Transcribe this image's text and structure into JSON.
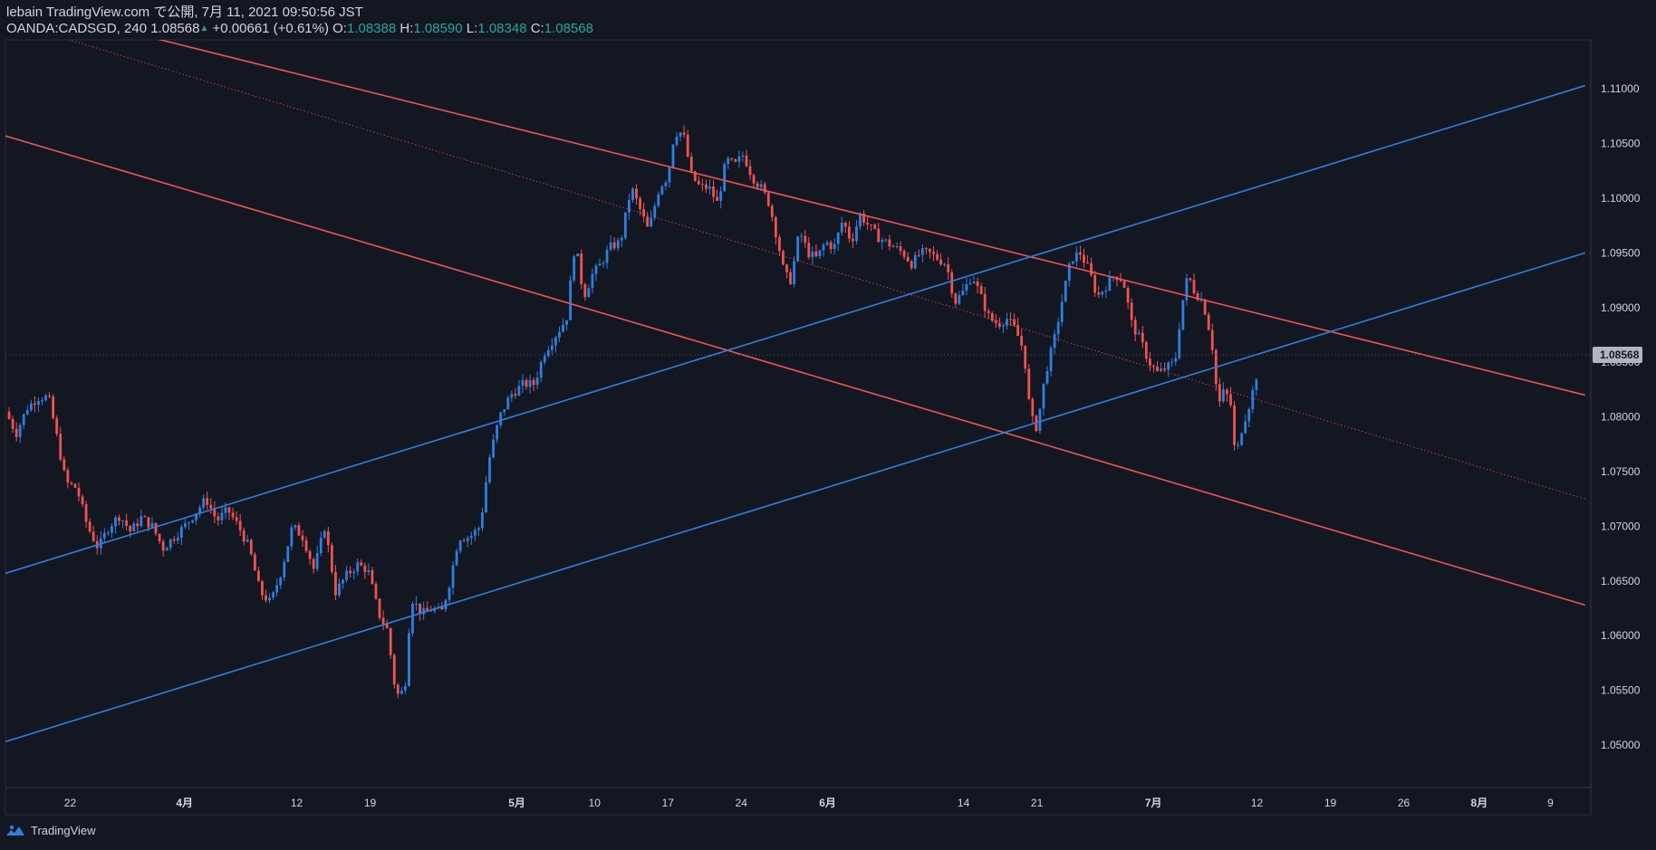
{
  "header": {
    "line1": "lebain TradingView.com で公開, 7月 11, 2021 09:50:56 JST",
    "symbol": "OANDA:CADSGD, 240",
    "last": "1.08568",
    "change": "+0.00661 (+0.61%)",
    "o_label": "O:",
    "o_value": "1.08388",
    "h_label": "H:",
    "h_value": "1.08590",
    "l_label": "L:",
    "l_value": "1.08348",
    "c_label": "C:",
    "c_value": "1.08568"
  },
  "footer": {
    "brand": "TradingView"
  },
  "colors": {
    "background": "#131722",
    "up": "#2e7fe0",
    "down": "#ef5350",
    "channel_red": "#ef5350",
    "channel_blue": "#2f7fe0",
    "text": "#d1d4dc",
    "price_badge": "#b2b5be"
  },
  "chart_data": {
    "type": "candlestick",
    "symbol": "OANDA:CADSGD",
    "interval": "240",
    "y_axis_ticks": [
      "1.11000",
      "1.10500",
      "1.10000",
      "1.09500",
      "1.09000",
      "1.08500",
      "1.08000",
      "1.07500",
      "1.07000",
      "1.06500",
      "1.06000",
      "1.05500",
      "1.05000"
    ],
    "ylim": [
      1.0455,
      1.1145
    ],
    "current_price": "1.08568",
    "x_axis_ticks": [
      {
        "label": "22",
        "idx": 3.0,
        "month": false
      },
      {
        "label": "4月",
        "idx": 8.3,
        "month": true
      },
      {
        "label": "12",
        "idx": 13.5,
        "month": false
      },
      {
        "label": "19",
        "idx": 16.9,
        "month": false
      },
      {
        "label": "5月",
        "idx": 23.7,
        "month": true
      },
      {
        "label": "10",
        "idx": 27.3,
        "month": false
      },
      {
        "label": "17",
        "idx": 30.7,
        "month": false
      },
      {
        "label": "24",
        "idx": 34.1,
        "month": false
      },
      {
        "label": "6月",
        "idx": 38.1,
        "month": true
      },
      {
        "label": "14",
        "idx": 44.4,
        "month": false
      },
      {
        "label": "21",
        "idx": 47.8,
        "month": false
      },
      {
        "label": "7月",
        "idx": 53.2,
        "month": true
      },
      {
        "label": "12",
        "idx": 58.0,
        "month": false
      },
      {
        "label": "19",
        "idx": 61.4,
        "month": false
      },
      {
        "label": "26",
        "idx": 64.8,
        "month": false
      },
      {
        "label": "8月",
        "idx": 68.3,
        "month": true
      },
      {
        "label": "9",
        "idx": 71.6,
        "month": false
      }
    ],
    "x_range": [
      0,
      73.2
    ],
    "price_path": [
      [
        0,
        1.0805
      ],
      [
        0.5,
        1.0785
      ],
      [
        1,
        1.0808
      ],
      [
        1.5,
        1.0818
      ],
      [
        2,
        1.0818
      ],
      [
        2.3,
        1.079
      ],
      [
        2.8,
        1.074
      ],
      [
        3.3,
        1.0735
      ],
      [
        3.8,
        1.07
      ],
      [
        4.3,
        1.068
      ],
      [
        4.8,
        1.07
      ],
      [
        5.3,
        1.071
      ],
      [
        5.8,
        1.0695
      ],
      [
        6.3,
        1.0708
      ],
      [
        6.8,
        1.07
      ],
      [
        7.3,
        1.068
      ],
      [
        7.8,
        1.069
      ],
      [
        8.3,
        1.07
      ],
      [
        9.3,
        1.0725
      ],
      [
        9.8,
        1.0705
      ],
      [
        10.3,
        1.0715
      ],
      [
        10.8,
        1.07
      ],
      [
        11.3,
        1.068
      ],
      [
        11.8,
        1.064
      ],
      [
        12.3,
        1.063
      ],
      [
        12.8,
        1.066
      ],
      [
        13.3,
        1.07
      ],
      [
        13.8,
        1.069
      ],
      [
        14.3,
        1.066
      ],
      [
        14.8,
        1.07
      ],
      [
        15.3,
        1.064
      ],
      [
        15.8,
        1.0655
      ],
      [
        16.3,
        1.0665
      ],
      [
        16.8,
        1.066
      ],
      [
        17.3,
        1.062
      ],
      [
        17.7,
        1.0605
      ],
      [
        18.1,
        1.0545
      ],
      [
        18.5,
        1.055
      ],
      [
        18.8,
        1.0635
      ],
      [
        19.3,
        1.062
      ],
      [
        19.8,
        1.0625
      ],
      [
        20.2,
        1.062
      ],
      [
        20.6,
        1.065
      ],
      [
        21.0,
        1.069
      ],
      [
        21.5,
        1.069
      ],
      [
        22.0,
        1.07
      ],
      [
        22.4,
        1.076
      ],
      [
        22.9,
        1.08
      ],
      [
        23.4,
        1.082
      ],
      [
        24.0,
        1.083
      ],
      [
        24.5,
        1.083
      ],
      [
        25.0,
        1.086
      ],
      [
        25.5,
        1.0875
      ],
      [
        26.0,
        1.089
      ],
      [
        26.4,
        1.096
      ],
      [
        26.8,
        1.091
      ],
      [
        27.2,
        1.093
      ],
      [
        27.6,
        1.094
      ],
      [
        28.0,
        1.0955
      ],
      [
        28.5,
        1.096
      ],
      [
        29.0,
        1.101
      ],
      [
        29.4,
        1.099
      ],
      [
        29.8,
        1.097
      ],
      [
        30.3,
        1.101
      ],
      [
        30.7,
        1.102
      ],
      [
        31.0,
        1.106
      ],
      [
        31.4,
        1.106
      ],
      [
        31.8,
        1.102
      ],
      [
        32.2,
        1.101
      ],
      [
        32.6,
        1.101
      ],
      [
        33.0,
        1.0995
      ],
      [
        33.4,
        1.1035
      ],
      [
        33.8,
        1.103
      ],
      [
        34.2,
        1.104
      ],
      [
        34.6,
        1.102
      ],
      [
        35.0,
        1.101
      ],
      [
        35.4,
        1.0995
      ],
      [
        35.8,
        1.096
      ],
      [
        36.1,
        1.093
      ],
      [
        36.4,
        1.0925
      ],
      [
        36.8,
        1.097
      ],
      [
        37.2,
        1.095
      ],
      [
        37.6,
        1.0945
      ],
      [
        38.0,
        1.096
      ],
      [
        38.4,
        1.0955
      ],
      [
        38.8,
        1.098
      ],
      [
        39.2,
        1.096
      ],
      [
        39.6,
        1.0985
      ],
      [
        40.0,
        1.0975
      ],
      [
        40.4,
        1.0965
      ],
      [
        40.8,
        1.096
      ],
      [
        41.2,
        1.0955
      ],
      [
        41.6,
        1.095
      ],
      [
        42.0,
        1.094
      ],
      [
        42.4,
        1.095
      ],
      [
        42.8,
        1.095
      ],
      [
        43.2,
        1.0945
      ],
      [
        43.6,
        1.094
      ],
      [
        44.0,
        1.0905
      ],
      [
        44.4,
        1.0915
      ],
      [
        44.8,
        1.093
      ],
      [
        45.2,
        1.091
      ],
      [
        45.6,
        1.089
      ],
      [
        46.0,
        1.0885
      ],
      [
        46.4,
        1.089
      ],
      [
        46.8,
        1.088
      ],
      [
        47.2,
        1.086
      ],
      [
        47.5,
        1.08
      ],
      [
        47.8,
        1.079
      ],
      [
        48.2,
        1.084
      ],
      [
        48.6,
        1.087
      ],
      [
        49.0,
        1.091
      ],
      [
        49.4,
        1.0945
      ],
      [
        49.8,
        1.095
      ],
      [
        50.2,
        1.0935
      ],
      [
        50.6,
        1.091
      ],
      [
        51.0,
        1.092
      ],
      [
        51.4,
        1.093
      ],
      [
        51.8,
        1.0925
      ],
      [
        52.2,
        1.0885
      ],
      [
        52.6,
        1.087
      ],
      [
        53.0,
        1.085
      ],
      [
        53.4,
        1.084
      ],
      [
        53.8,
        1.0845
      ],
      [
        54.2,
        1.085
      ],
      [
        54.5,
        1.09
      ],
      [
        54.8,
        1.093
      ],
      [
        55.1,
        1.0915
      ],
      [
        55.5,
        1.0905
      ],
      [
        55.9,
        1.087
      ],
      [
        56.2,
        1.081
      ],
      [
        56.5,
        1.0825
      ],
      [
        56.8,
        1.081
      ],
      [
        57.0,
        1.076
      ],
      [
        57.3,
        1.079
      ],
      [
        57.7,
        1.0815
      ],
      [
        58.0,
        1.084
      ],
      [
        58.1,
        1.0857
      ]
    ],
    "channel_lines": [
      {
        "name": "descending-upper",
        "color": "red",
        "style": "solid",
        "p1": [
          6.15,
          1.115
        ],
        "p2": [
          73.2,
          1.082
        ]
      },
      {
        "name": "descending-median",
        "color": "red",
        "style": "dotted",
        "p1": [
          2.1,
          1.115
        ],
        "p2": [
          73.2,
          1.0725
        ]
      },
      {
        "name": "descending-lower",
        "color": "red",
        "style": "solid",
        "p1": [
          0,
          1.1057
        ],
        "p2": [
          73.2,
          1.0628
        ]
      },
      {
        "name": "ascending-upper",
        "color": "blue",
        "style": "solid",
        "p1": [
          0,
          1.0657
        ],
        "p2": [
          73.2,
          1.1103
        ]
      },
      {
        "name": "ascending-lower",
        "color": "blue",
        "style": "solid",
        "p1": [
          0,
          1.0503
        ],
        "p2": [
          73.2,
          1.095
        ]
      }
    ]
  }
}
